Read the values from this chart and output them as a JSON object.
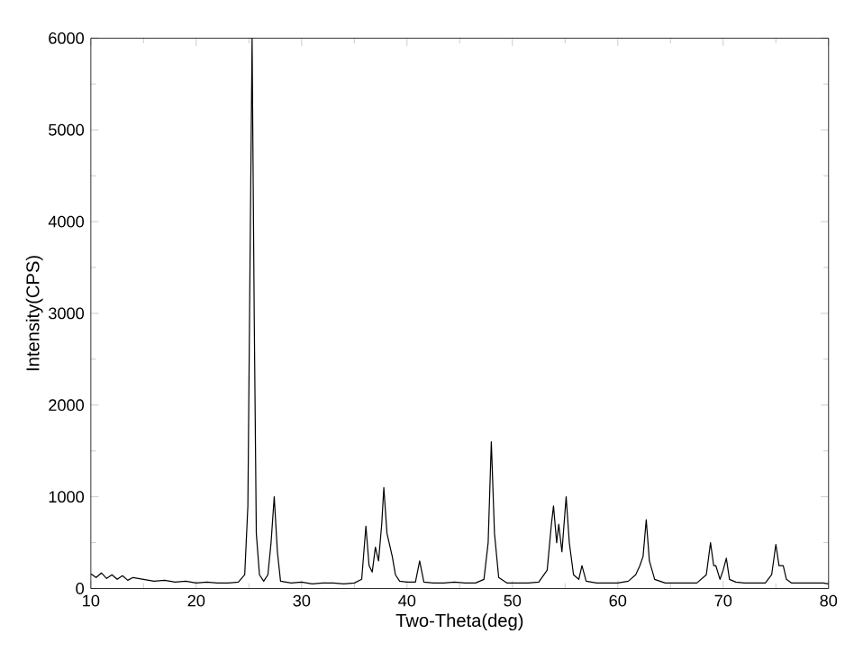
{
  "chart_data": {
    "type": "line",
    "xlabel": "Two-Theta(deg)",
    "ylabel": "Intensity(CPS)",
    "xlim": [
      10,
      80
    ],
    "ylim": [
      0,
      6000
    ],
    "xticks": [
      10,
      20,
      30,
      40,
      50,
      60,
      70,
      80
    ],
    "yticks": [
      0,
      1000,
      2000,
      3000,
      4000,
      5000,
      6000
    ],
    "grid": false,
    "series": [
      {
        "color": "#000000",
        "x": [
          10,
          10.5,
          11,
          11.5,
          12,
          12.5,
          13,
          13.5,
          14,
          15,
          16,
          17,
          18,
          19,
          20,
          21,
          22,
          23,
          24,
          24.6,
          24.9,
          25.1,
          25.3,
          25.5,
          25.7,
          26,
          26.4,
          26.8,
          27.1,
          27.4,
          27.7,
          28,
          29,
          30,
          31,
          32,
          33,
          34,
          35,
          35.7,
          36.1,
          36.4,
          36.7,
          37,
          37.3,
          37.6,
          37.8,
          38.1,
          38.4,
          38.6,
          38.9,
          39.3,
          40,
          40.8,
          41.2,
          41.6,
          42.5,
          43.5,
          44.5,
          45.5,
          46.5,
          47.3,
          47.7,
          48,
          48.3,
          48.7,
          49.5,
          50.5,
          51.5,
          52.5,
          53.3,
          53.7,
          53.9,
          54.2,
          54.4,
          54.7,
          55.1,
          55.4,
          55.8,
          56.3,
          56.6,
          57,
          58,
          59,
          60,
          61,
          61.7,
          62.1,
          62.4,
          62.7,
          63,
          63.5,
          64.5,
          65.5,
          66.5,
          67.5,
          68.4,
          68.8,
          69.1,
          69.3,
          69.7,
          70,
          70.3,
          70.6,
          71.2,
          72,
          73,
          74,
          74.6,
          75,
          75.3,
          75.7,
          76,
          76.5,
          77.5,
          78.5,
          79.5,
          80
        ],
        "values": [
          160,
          120,
          170,
          110,
          150,
          100,
          140,
          90,
          120,
          100,
          80,
          90,
          70,
          80,
          60,
          70,
          60,
          60,
          70,
          150,
          900,
          3500,
          6000,
          3000,
          600,
          150,
          80,
          150,
          500,
          1000,
          400,
          80,
          60,
          70,
          50,
          60,
          60,
          50,
          60,
          100,
          680,
          250,
          180,
          450,
          300,
          700,
          1100,
          600,
          450,
          350,
          150,
          80,
          70,
          70,
          300,
          70,
          60,
          60,
          70,
          60,
          60,
          100,
          500,
          1600,
          600,
          120,
          60,
          60,
          60,
          70,
          200,
          700,
          900,
          500,
          700,
          400,
          1000,
          500,
          150,
          100,
          250,
          80,
          60,
          60,
          60,
          80,
          150,
          250,
          350,
          750,
          300,
          100,
          60,
          60,
          60,
          60,
          150,
          500,
          250,
          250,
          100,
          200,
          330,
          100,
          70,
          60,
          60,
          60,
          150,
          480,
          250,
          250,
          100,
          60,
          60,
          60,
          60,
          50
        ]
      }
    ]
  }
}
